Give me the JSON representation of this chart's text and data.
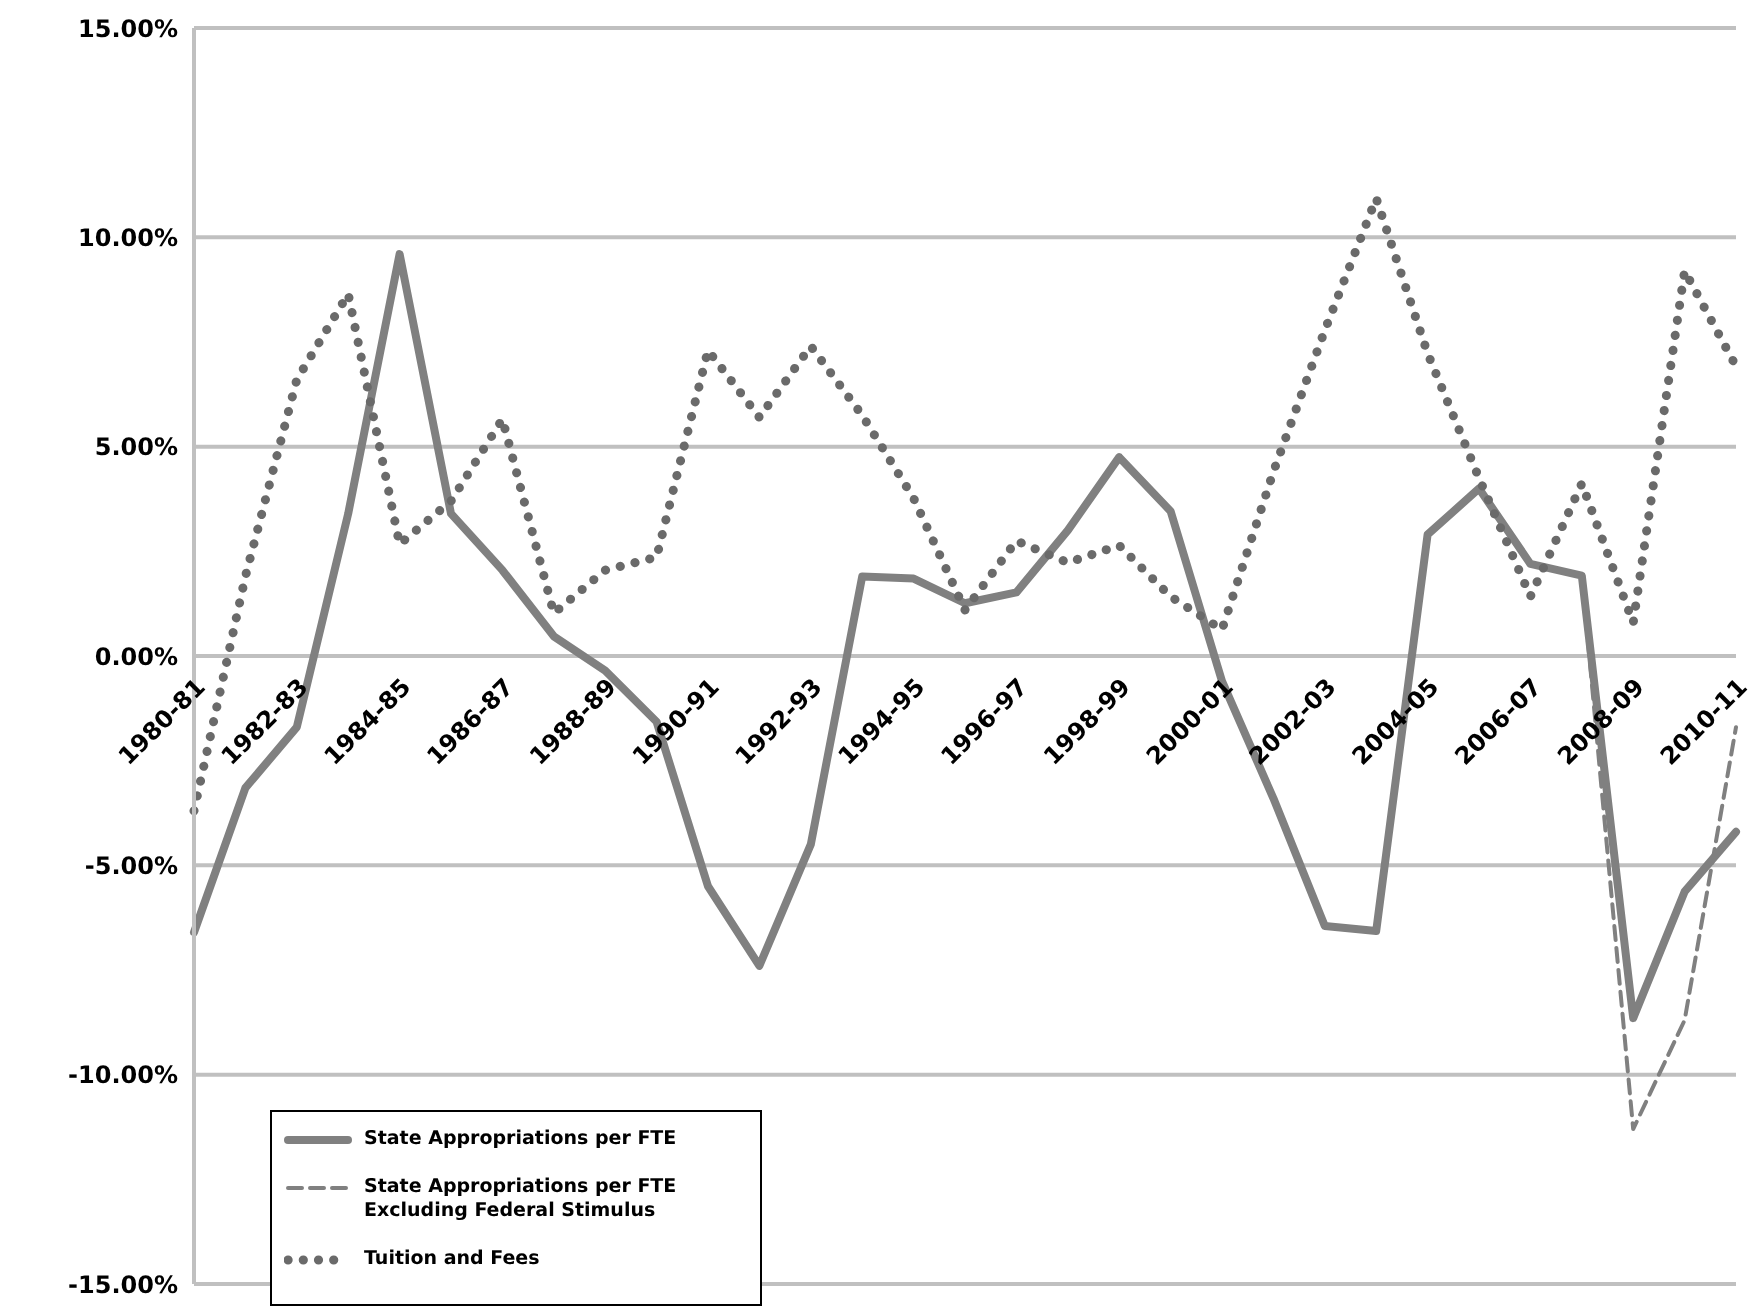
{
  "chart_data": {
    "type": "line",
    "categories": [
      "1980-81",
      null,
      "1982-83",
      null,
      "1984-85",
      null,
      "1986-87",
      null,
      "1988-89",
      null,
      "1990-91",
      null,
      "1992-93",
      null,
      "1994-95",
      null,
      "1996-97",
      null,
      "1998-99",
      null,
      "2000-01",
      null,
      "2002-03",
      null,
      "2004-05",
      null,
      "2006-07",
      null,
      "2008-09",
      null,
      "2010-11"
    ],
    "series": [
      {
        "name": "State Appropriations per FTE",
        "color": "#808080",
        "line_style": "solid",
        "values": [
          -6.6,
          -3.15,
          -1.7,
          3.4,
          9.6,
          3.4,
          2.05,
          0.47,
          -0.35,
          -1.57,
          -5.5,
          -7.4,
          -4.5,
          1.9,
          1.85,
          1.26,
          1.52,
          3.0,
          4.75,
          3.46,
          -0.6,
          -3.4,
          -6.45,
          -6.57,
          2.9,
          4.0,
          2.2,
          1.92,
          -8.65,
          -5.63,
          -4.2
        ]
      },
      {
        "name": "State Appropriations per FTE Excluding Federal Stimulus",
        "color": "#808080",
        "line_style": "dashed",
        "values": [
          null,
          null,
          null,
          null,
          null,
          null,
          null,
          null,
          null,
          null,
          null,
          null,
          null,
          null,
          null,
          null,
          null,
          null,
          null,
          null,
          null,
          null,
          null,
          null,
          null,
          null,
          null,
          1.92,
          -11.3,
          -8.7,
          -1.7
        ]
      },
      {
        "name": "Tuition and Fees",
        "color": "#6a6a6a",
        "line_style": "dotted",
        "values": [
          -3.7,
          1.9,
          6.6,
          8.65,
          2.67,
          3.7,
          5.66,
          1.02,
          2.05,
          2.36,
          7.3,
          5.7,
          7.4,
          5.75,
          3.77,
          1.1,
          2.75,
          2.23,
          2.64,
          1.42,
          0.63,
          4.4,
          7.78,
          10.93,
          7.23,
          4.25,
          1.42,
          4.12,
          0.79,
          9.2,
          6.92
        ]
      }
    ],
    "ylim": [
      -15,
      15
    ],
    "yticks": [
      {
        "value": -15,
        "label": "-15.00%"
      },
      {
        "value": -10,
        "label": "-10.00%"
      },
      {
        "value": -5,
        "label": "-5.00%"
      },
      {
        "value": 0,
        "label": "0.00%"
      },
      {
        "value": 5,
        "label": "5.00%"
      },
      {
        "value": 10,
        "label": "10.00%"
      },
      {
        "value": 15,
        "label": "15.00%"
      }
    ],
    "grid": "y",
    "legend": "bottom left"
  }
}
